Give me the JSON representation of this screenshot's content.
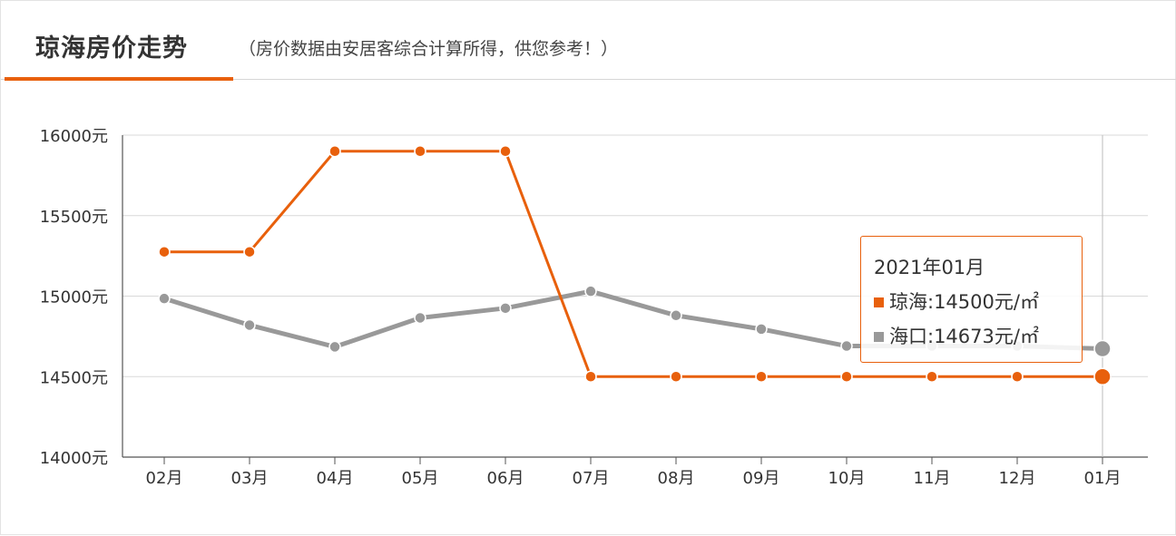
{
  "header": {
    "title": "琼海房价走势",
    "note": "（房价数据由安居客综合计算所得，供您参考！）"
  },
  "tooltip": {
    "period": "2021年01月",
    "rows": [
      {
        "label": "琼海:14500元/㎡",
        "color": "#e8600c"
      },
      {
        "label": "海口:14673元/㎡",
        "color": "#999999"
      }
    ]
  },
  "chart_data": {
    "type": "line",
    "categories": [
      "02月",
      "03月",
      "04月",
      "05月",
      "06月",
      "07月",
      "08月",
      "09月",
      "10月",
      "11月",
      "12月",
      "01月"
    ],
    "y_ticks": [
      "14000元",
      "14500元",
      "15000元",
      "15500元",
      "16000元"
    ],
    "ylim": [
      14000,
      16000
    ],
    "grid": true,
    "series": [
      {
        "name": "琼海",
        "color": "#e8600c",
        "values": [
          15275,
          15275,
          15900,
          15900,
          15900,
          14500,
          14500,
          14500,
          14500,
          14500,
          14500,
          14500
        ]
      },
      {
        "name": "海口",
        "color": "#999999",
        "values": [
          14985,
          14820,
          14685,
          14865,
          14925,
          15030,
          14880,
          14795,
          14690,
          14690,
          14690,
          14673
        ]
      }
    ],
    "highlight_index": 11
  }
}
